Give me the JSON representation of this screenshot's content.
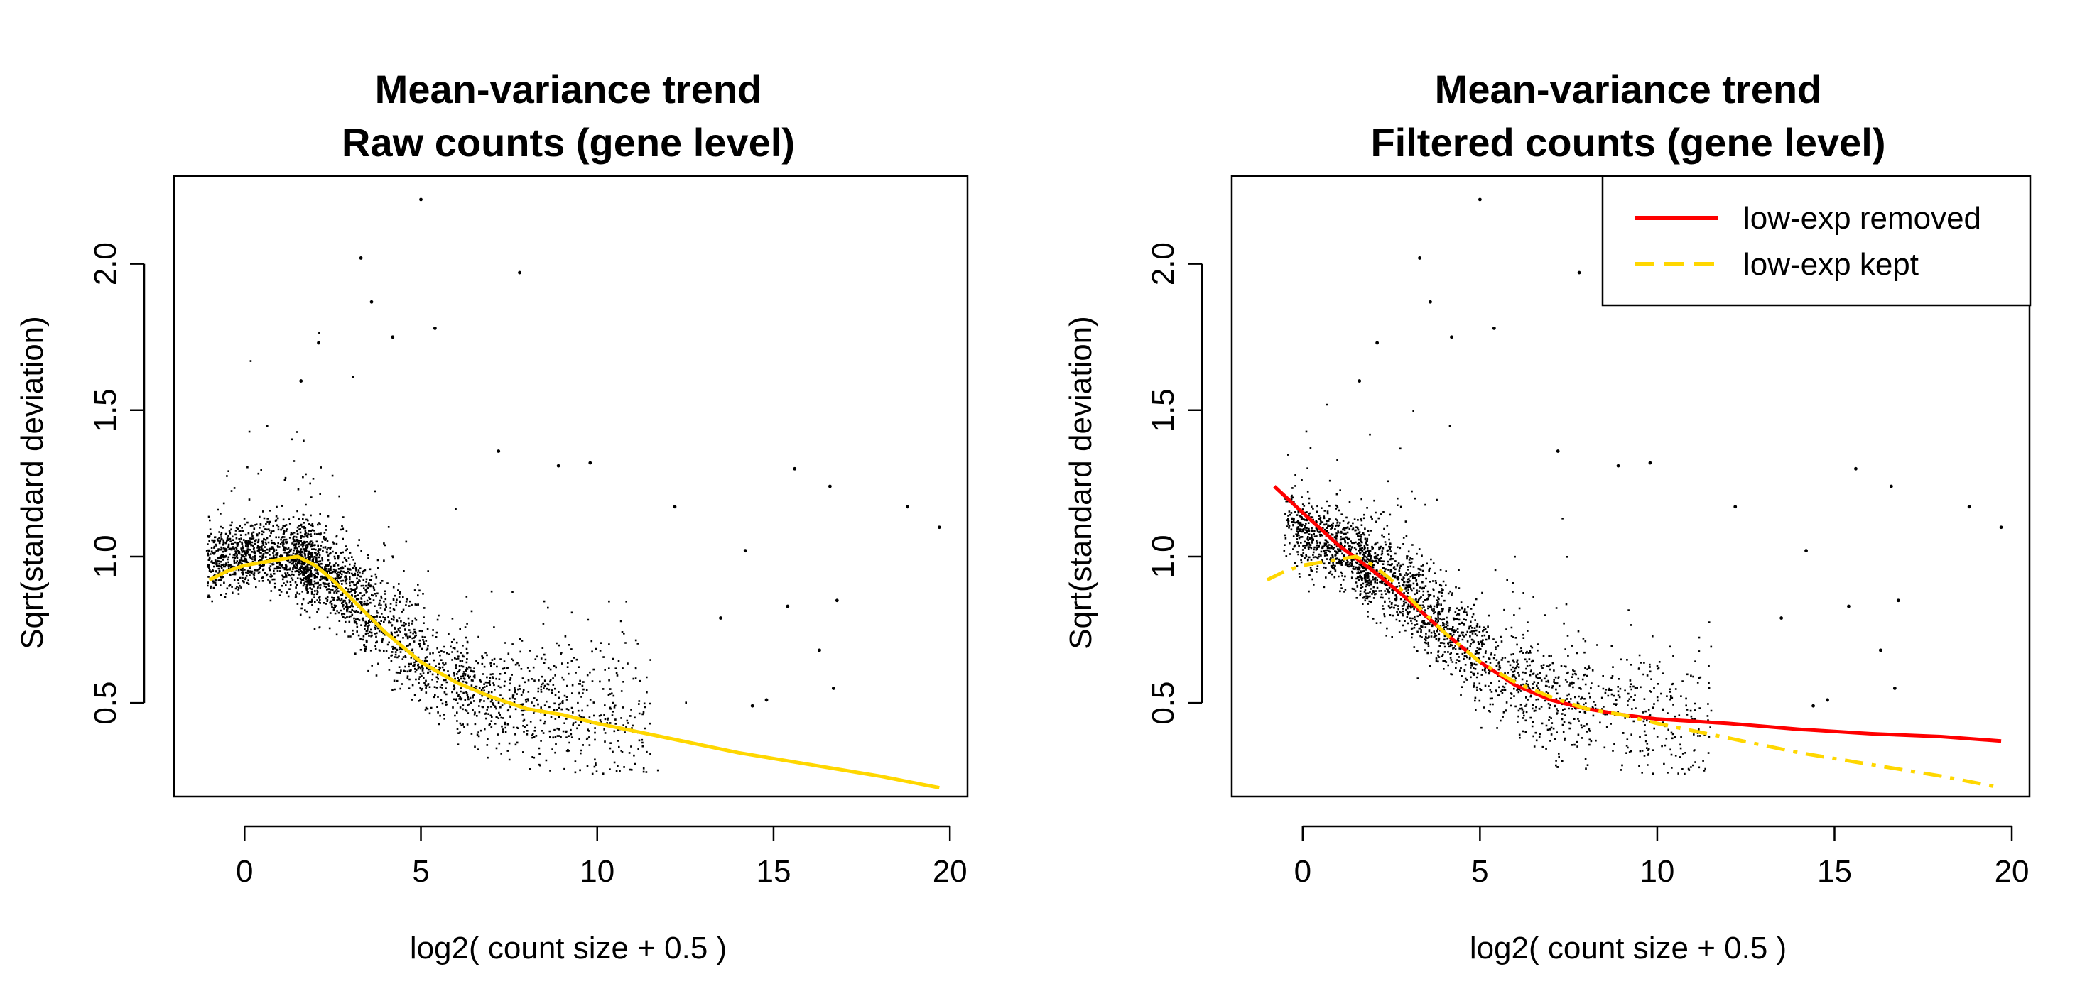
{
  "chart_data": [
    {
      "type": "scatter",
      "title": "Mean-variance trend",
      "subtitle": "Raw counts (gene level)",
      "xlabel": "log2( count size + 0.5 )",
      "ylabel": "Sqrt(standard deviation)",
      "xlim": [
        -2,
        20.5
      ],
      "ylim": [
        0.18,
        2.3
      ],
      "xticks": [
        0,
        5,
        10,
        15,
        20
      ],
      "yticks": [
        0.5,
        1.0,
        1.5,
        2.0
      ],
      "xtick_labels": [
        "0",
        "5",
        "10",
        "15",
        "20"
      ],
      "ytick_labels": [
        "0.5",
        "1.0",
        "1.5",
        "2.0"
      ],
      "grid": false,
      "scatter_color": "#000000",
      "outliers": [
        {
          "x": 5.0,
          "y": 2.22
        },
        {
          "x": 3.3,
          "y": 2.02
        },
        {
          "x": 7.8,
          "y": 1.97
        },
        {
          "x": 3.6,
          "y": 1.87
        },
        {
          "x": 4.2,
          "y": 1.75
        },
        {
          "x": 5.4,
          "y": 1.78
        },
        {
          "x": 15.6,
          "y": 1.3
        },
        {
          "x": 16.6,
          "y": 1.24
        },
        {
          "x": 18.8,
          "y": 1.17
        },
        {
          "x": 19.7,
          "y": 1.1
        },
        {
          "x": 12.2,
          "y": 1.17
        },
        {
          "x": 14.2,
          "y": 1.02
        },
        {
          "x": 16.8,
          "y": 0.85
        },
        {
          "x": 15.4,
          "y": 0.83
        },
        {
          "x": 13.5,
          "y": 0.79
        },
        {
          "x": 16.3,
          "y": 0.68
        },
        {
          "x": 16.7,
          "y": 0.55
        },
        {
          "x": 14.8,
          "y": 0.51
        },
        {
          "x": 14.4,
          "y": 0.49
        },
        {
          "x": 9.8,
          "y": 1.32
        },
        {
          "x": 8.9,
          "y": 1.31
        },
        {
          "x": 7.2,
          "y": 1.36
        },
        {
          "x": 2.1,
          "y": 1.73
        },
        {
          "x": 1.6,
          "y": 1.6
        }
      ],
      "series": [
        {
          "color": "#FFD700",
          "style": "solid",
          "x": [
            -1,
            -0.5,
            0,
            0.5,
            1,
            1.5,
            2,
            2.5,
            3,
            3.5,
            4,
            4.5,
            5,
            6,
            7,
            8,
            9,
            10,
            12,
            14,
            16,
            18,
            19.7
          ],
          "y": [
            0.92,
            0.95,
            0.97,
            0.98,
            0.99,
            1.0,
            0.97,
            0.92,
            0.86,
            0.8,
            0.74,
            0.69,
            0.64,
            0.57,
            0.52,
            0.48,
            0.46,
            0.43,
            0.38,
            0.33,
            0.29,
            0.25,
            0.21
          ]
        }
      ]
    },
    {
      "type": "scatter",
      "title": "Mean-variance trend",
      "subtitle": "Filtered counts (gene level)",
      "xlabel": "log2( count size + 0.5 )",
      "ylabel": "Sqrt(standard deviation)",
      "xlim": [
        -2,
        20.5
      ],
      "ylim": [
        0.18,
        2.3
      ],
      "xticks": [
        0,
        5,
        10,
        15,
        20
      ],
      "yticks": [
        0.5,
        1.0,
        1.5,
        2.0
      ],
      "xtick_labels": [
        "0",
        "5",
        "10",
        "15",
        "20"
      ],
      "ytick_labels": [
        "0.5",
        "1.0",
        "1.5",
        "2.0"
      ],
      "grid": false,
      "scatter_color": "#000000",
      "legend_position": "top-right",
      "outliers": [
        {
          "x": 5.0,
          "y": 2.22
        },
        {
          "x": 3.3,
          "y": 2.02
        },
        {
          "x": 7.8,
          "y": 1.97
        },
        {
          "x": 3.6,
          "y": 1.87
        },
        {
          "x": 4.2,
          "y": 1.75
        },
        {
          "x": 5.4,
          "y": 1.78
        },
        {
          "x": 15.6,
          "y": 1.3
        },
        {
          "x": 16.6,
          "y": 1.24
        },
        {
          "x": 18.8,
          "y": 1.17
        },
        {
          "x": 19.7,
          "y": 1.1
        },
        {
          "x": 12.2,
          "y": 1.17
        },
        {
          "x": 14.2,
          "y": 1.02
        },
        {
          "x": 16.8,
          "y": 0.85
        },
        {
          "x": 15.4,
          "y": 0.83
        },
        {
          "x": 13.5,
          "y": 0.79
        },
        {
          "x": 16.3,
          "y": 0.68
        },
        {
          "x": 16.7,
          "y": 0.55
        },
        {
          "x": 14.8,
          "y": 0.51
        },
        {
          "x": 14.4,
          "y": 0.49
        },
        {
          "x": 9.8,
          "y": 1.32
        },
        {
          "x": 8.9,
          "y": 1.31
        },
        {
          "x": 7.2,
          "y": 1.36
        },
        {
          "x": 2.1,
          "y": 1.73
        },
        {
          "x": 1.6,
          "y": 1.6
        }
      ],
      "series": [
        {
          "name": "low-exp removed",
          "color": "#FF0000",
          "style": "solid",
          "x": [
            -0.8,
            0,
            1,
            2,
            3,
            4,
            5,
            6,
            7,
            8,
            9,
            10,
            12,
            14,
            16,
            18,
            19.7
          ],
          "y": [
            1.24,
            1.15,
            1.04,
            0.95,
            0.85,
            0.74,
            0.64,
            0.56,
            0.51,
            0.48,
            0.46,
            0.445,
            0.43,
            0.41,
            0.395,
            0.385,
            0.37
          ]
        },
        {
          "name": "low-exp kept",
          "color": "#FFD700",
          "style": "dashed",
          "x": [
            -1,
            -0.5,
            0,
            0.5,
            1,
            1.5,
            2,
            2.5,
            3,
            3.5,
            4,
            4.5,
            5,
            6,
            7,
            8,
            9,
            10,
            12,
            14,
            16,
            18,
            19.7
          ],
          "y": [
            0.92,
            0.95,
            0.97,
            0.98,
            0.99,
            1.0,
            0.97,
            0.92,
            0.86,
            0.8,
            0.74,
            0.69,
            0.64,
            0.57,
            0.52,
            0.48,
            0.46,
            0.43,
            0.38,
            0.33,
            0.29,
            0.25,
            0.21
          ]
        }
      ]
    }
  ]
}
